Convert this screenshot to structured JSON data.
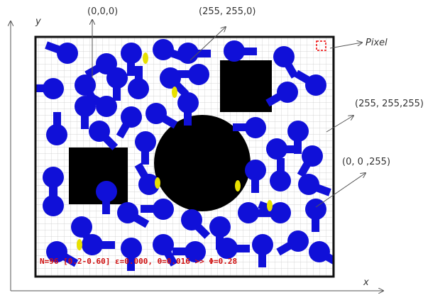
{
  "axes": {
    "x": "x",
    "y": "y"
  },
  "labels": {
    "black": "(0,0,0)",
    "yellow": "(255, 255,0)",
    "pixel": "Pixel",
    "white": "(255, 255,255)",
    "blue": "(0, 0 ,255)"
  },
  "status_text": "N=96 [0.2-0.60] ε=0.000, θ=0.016 >> Φ=0.28"
}
